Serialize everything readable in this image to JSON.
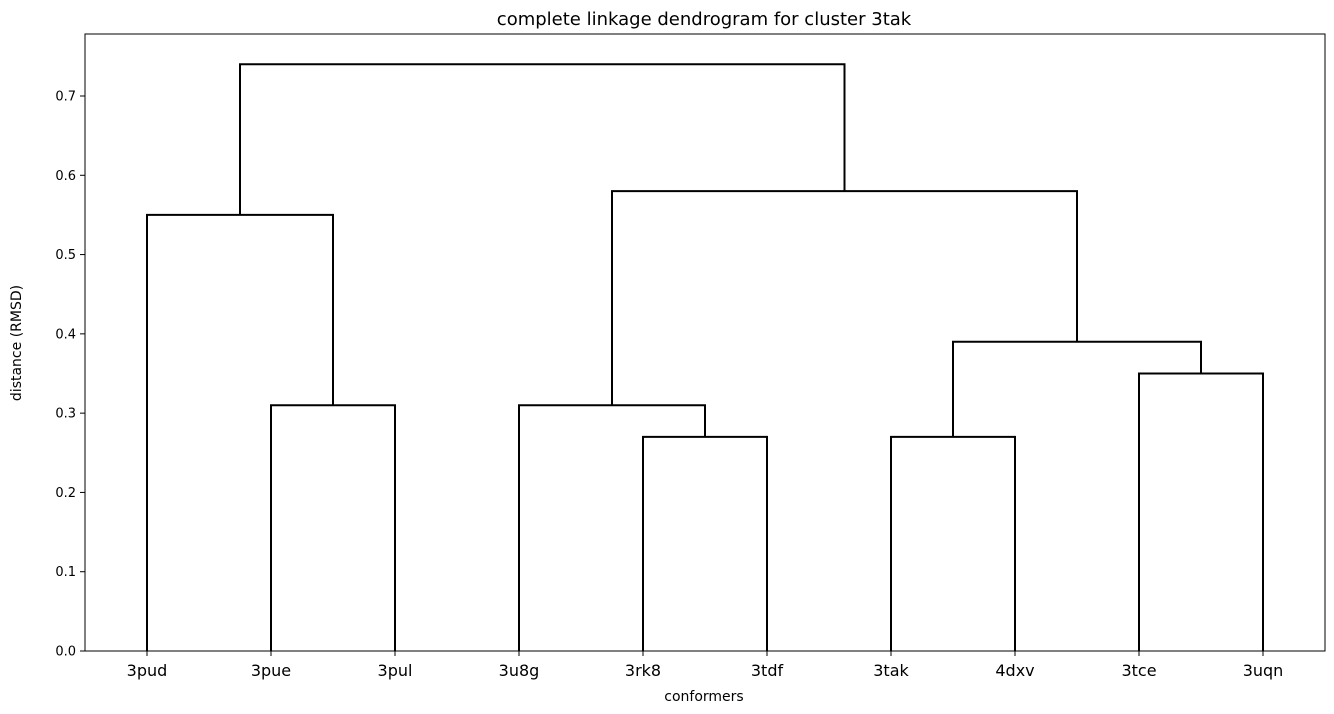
{
  "chart_data": {
    "type": "dendrogram",
    "title": "complete linkage dendrogram for cluster 3tak",
    "xlabel": "conformers",
    "ylabel": "distance (RMSD)",
    "ylim": [
      0,
      0.78
    ],
    "yticks": [
      "0.0",
      "0.1",
      "0.2",
      "0.3",
      "0.4",
      "0.5",
      "0.6",
      "0.7"
    ],
    "leaves": [
      "3pud",
      "3pue",
      "3pul",
      "3u8g",
      "3rk8",
      "3tdf",
      "3tak",
      "4dxv",
      "3tce",
      "3uqn"
    ],
    "merges": [
      {
        "left": "3pue",
        "right": "3pul",
        "height": 0.31
      },
      {
        "left": "3rk8",
        "right": "3tdf",
        "height": 0.27
      },
      {
        "left": "3tak",
        "right": "4dxv",
        "height": 0.27
      },
      {
        "left": "3tce",
        "right": "3uqn",
        "height": 0.35
      },
      {
        "left": "3pud",
        "right": "(3pue,3pul)",
        "height": 0.55
      },
      {
        "left": "3u8g",
        "right": "(3rk8,3tdf)",
        "height": 0.31
      },
      {
        "left": "(3tak,4dxv)",
        "right": "(3tce,3uqn)",
        "height": 0.39
      },
      {
        "left": "(3u8g,(3rk8,3tdf))",
        "right": "((3tak,4dxv),(3tce,3uqn))",
        "height": 0.58
      },
      {
        "left": "(3pud,(3pue,3pul))",
        "right": "((3u8g,(3rk8,3tdf)),((3tak,4dxv),(3tce,3uqn)))",
        "height": 0.74
      }
    ],
    "grid": false,
    "line_color": "#000000"
  }
}
